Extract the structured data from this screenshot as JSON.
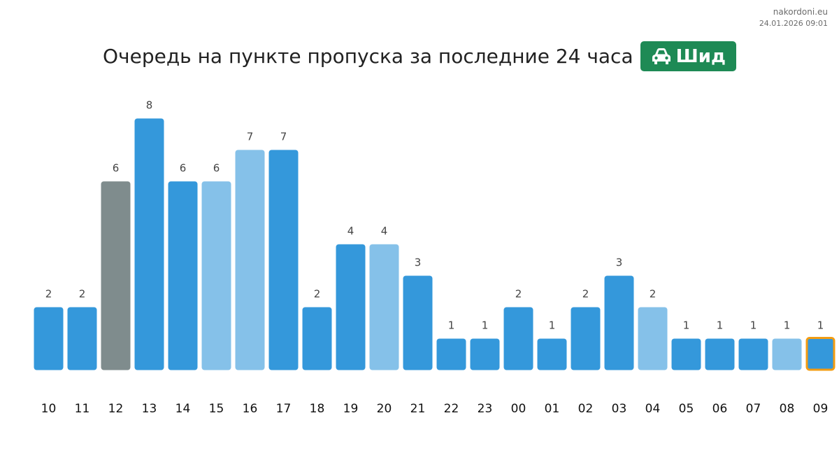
{
  "source": {
    "site": "nakordoni.eu",
    "timestamp": "24.01.2026 09:01"
  },
  "header": {
    "title": "Очередь на пункте пропуска за последние 24 часа",
    "badge_icon": "car-icon",
    "badge_label": "Шид",
    "badge_color": "#1e8a55"
  },
  "colors": {
    "primary": "#3498db",
    "light": "#85c1e9",
    "gray": "#7f8c8d",
    "current_outline": "#f39c12"
  },
  "chart_data": {
    "type": "bar",
    "categories": [
      "10",
      "11",
      "12",
      "13",
      "14",
      "15",
      "16",
      "17",
      "18",
      "19",
      "20",
      "21",
      "22",
      "23",
      "00",
      "01",
      "02",
      "03",
      "04",
      "05",
      "06",
      "07",
      "08",
      "09"
    ],
    "values": [
      2,
      2,
      6,
      8,
      6,
      6,
      7,
      7,
      2,
      4,
      4,
      3,
      1,
      1,
      2,
      1,
      2,
      3,
      2,
      1,
      1,
      1,
      1,
      1
    ],
    "bar_styles": [
      "primary",
      "primary",
      "gray",
      "primary",
      "primary",
      "light",
      "light",
      "primary",
      "primary",
      "primary",
      "light",
      "primary",
      "primary",
      "primary",
      "primary",
      "primary",
      "primary",
      "primary",
      "light",
      "primary",
      "primary",
      "primary",
      "light",
      "current"
    ],
    "ylim": [
      0,
      8
    ],
    "grid": false,
    "legend": "none"
  }
}
